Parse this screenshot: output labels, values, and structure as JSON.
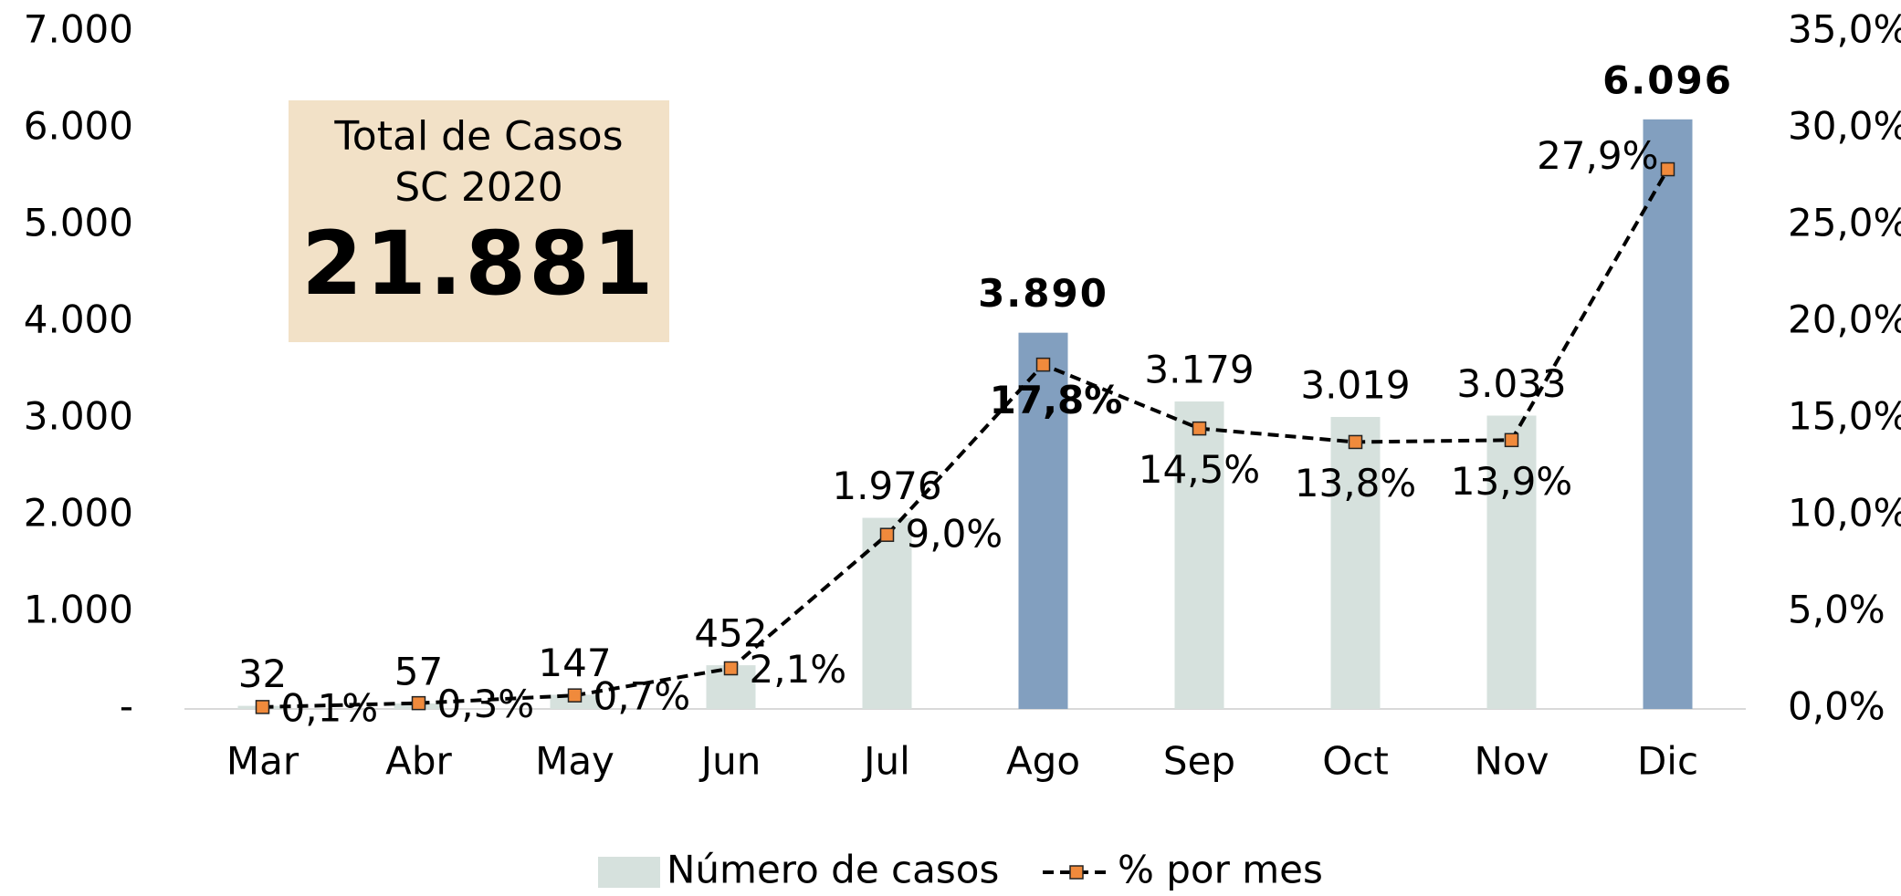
{
  "chart_data": {
    "type": "bar_line",
    "categories": [
      "Mar",
      "Abr",
      "May",
      "Jun",
      "Jul",
      "Ago",
      "Sep",
      "Oct",
      "Nov",
      "Dic"
    ],
    "series": [
      {
        "name": "Número de casos",
        "type": "bar",
        "color": "#d6e1dd",
        "colors": [
          "#d6e1dd",
          "#d6e1dd",
          "#d6e1dd",
          "#d6e1dd",
          "#d6e1dd",
          "#829fbf",
          "#d6e1dd",
          "#d6e1dd",
          "#d6e1dd",
          "#829fbf"
        ],
        "values": [
          32,
          57,
          147,
          452,
          1976,
          3890,
          3179,
          3019,
          3033,
          6096
        ],
        "value_labels": [
          "32",
          "57",
          "147",
          "452",
          "1.976",
          "3.890",
          "3.179",
          "3.019",
          "3.033",
          "6.096"
        ]
      },
      {
        "name": "% por mes",
        "type": "line",
        "axis": "y2",
        "color": "#000000",
        "marker_color": "#f08a3c",
        "values": [
          0.1,
          0.3,
          0.7,
          2.1,
          9.0,
          17.8,
          14.5,
          13.8,
          13.9,
          27.9
        ],
        "value_labels": [
          "0,1%",
          "0,3%",
          "0,7%",
          "2,1%",
          "9,0%",
          "17,8%",
          "14,5%",
          "13,8%",
          "13,9%",
          "27,9%"
        ]
      }
    ],
    "ylim": [
      0,
      7000
    ],
    "yticks": [
      {
        "value": 0,
        "label": "-"
      },
      {
        "value": 1000,
        "label": "1.000"
      },
      {
        "value": 2000,
        "label": "2.000"
      },
      {
        "value": 3000,
        "label": "3.000"
      },
      {
        "value": 4000,
        "label": "4.000"
      },
      {
        "value": 5000,
        "label": "5.000"
      },
      {
        "value": 6000,
        "label": "6.000"
      },
      {
        "value": 7000,
        "label": "7.000"
      }
    ],
    "y2lim": [
      0,
      35
    ],
    "y2ticks": [
      {
        "value": 0,
        "label": "0,0%"
      },
      {
        "value": 5,
        "label": "5,0%"
      },
      {
        "value": 10,
        "label": "10,0%"
      },
      {
        "value": 15,
        "label": "15,0%"
      },
      {
        "value": 20,
        "label": "20,0%"
      },
      {
        "value": 25,
        "label": "25,0%"
      },
      {
        "value": 30,
        "label": "30,0%"
      },
      {
        "value": 35,
        "label": "35,0%"
      }
    ],
    "legend": "bottom",
    "annotation": {
      "text": "Total de Casos SC 2020",
      "value": 21881,
      "value_label": "21.881"
    }
  }
}
